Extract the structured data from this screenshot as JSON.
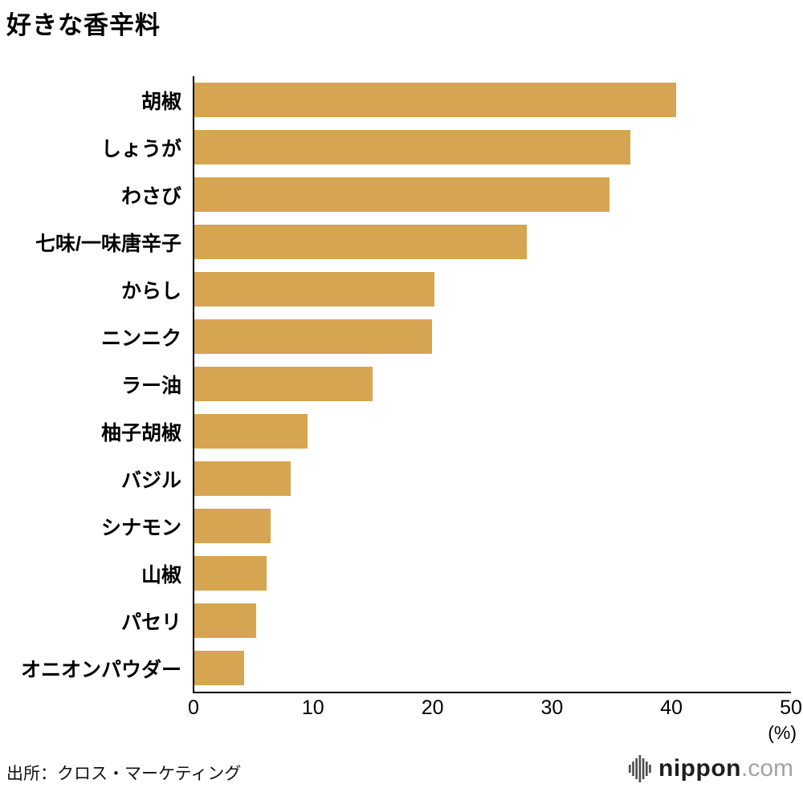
{
  "title": "好きな香辛料",
  "source": "出所：クロス・マーケティング",
  "logo": {
    "name": "nippon",
    "tld": ".com",
    "icon": "audio-waveform-icon"
  },
  "colors": {
    "bar": "#D6A551",
    "axis": "#000000",
    "logo_dark": "#1e1e1e",
    "logo_gray": "#a3a3a3"
  },
  "chart_data": {
    "type": "bar",
    "orientation": "horizontal",
    "title": "好きな香辛料",
    "xlabel": "(%)",
    "ylabel": "",
    "categories": [
      "胡椒",
      "しょうが",
      "わさび",
      "七味/一味唐辛子",
      "からし",
      "ニンニク",
      "ラー油",
      "柚子胡椒",
      "バジル",
      "シナモン",
      "山椒",
      "パセリ",
      "オニオンパウダー"
    ],
    "values": [
      40.4,
      36.6,
      34.8,
      27.9,
      20.2,
      20.0,
      15.0,
      9.6,
      8.2,
      6.5,
      6.2,
      5.3,
      4.3
    ],
    "xlim": [
      0,
      50
    ],
    "xticks": [
      0,
      10,
      20,
      30,
      40,
      50
    ],
    "grid": false,
    "legend": false,
    "bar_color": "#D6A551"
  }
}
